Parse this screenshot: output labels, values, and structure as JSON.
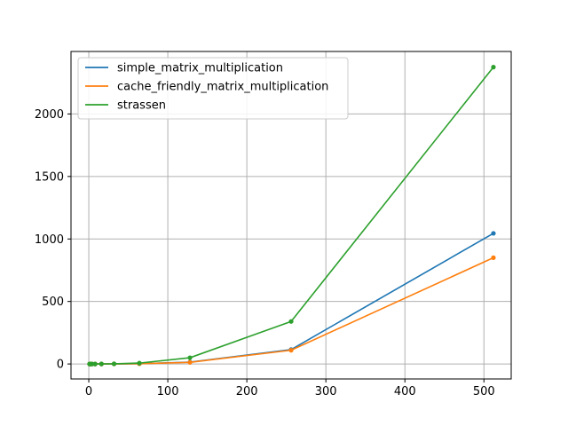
{
  "chart_data": {
    "type": "line",
    "title": "",
    "xlabel": "",
    "ylabel": "",
    "xlim": [
      -22.5,
      534.5
    ],
    "ylim": [
      -120,
      2500
    ],
    "x_ticks": [
      0,
      100,
      200,
      300,
      400,
      500
    ],
    "y_ticks": [
      0,
      500,
      1000,
      1500,
      2000
    ],
    "grid": true,
    "legend_placement": "top-left",
    "x": [
      1,
      2,
      4,
      8,
      16,
      32,
      64,
      128,
      256,
      512
    ],
    "series": [
      {
        "name": "simple_matrix_multiplication",
        "color": "#1f77b4",
        "values": [
          0,
          0,
          0,
          0,
          0,
          0.5,
          2,
          15,
          115,
          1045
        ]
      },
      {
        "name": "cache_friendly_matrix_multiplication",
        "color": "#ff7f0e",
        "values": [
          0,
          0,
          0,
          0,
          0,
          0.5,
          2,
          13,
          110,
          850
        ]
      },
      {
        "name": "strassen",
        "color": "#2ca02c",
        "values": [
          0,
          0,
          0,
          0,
          0.5,
          1,
          7,
          50,
          340,
          2375
        ]
      }
    ]
  }
}
